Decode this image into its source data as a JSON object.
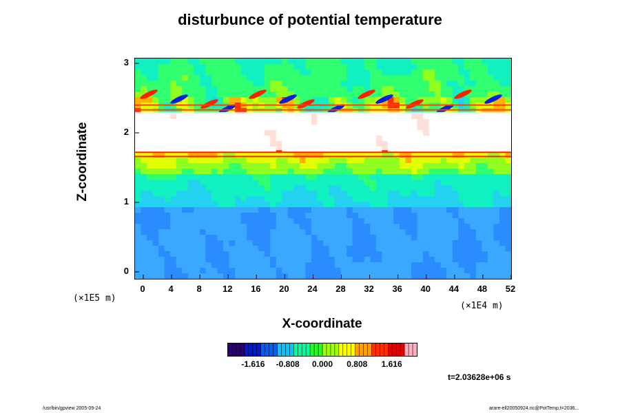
{
  "chart_data": {
    "type": "heatmap",
    "title": "disturbunce of potential temperature",
    "xlabel": "X-coordinate",
    "ylabel": "Z-coordinate",
    "x_unit_left": "(×1E5 m)",
    "x_unit_right": "(×1E4 m)",
    "xlim": [
      0,
      52
    ],
    "ylim": [
      0,
      3
    ],
    "x_ticks": [
      0,
      4,
      8,
      12,
      16,
      20,
      24,
      28,
      32,
      36,
      40,
      44,
      48,
      52
    ],
    "y_ticks": [
      0,
      1,
      2,
      3
    ],
    "x_tick_labels": [
      "0",
      "4",
      "8",
      "12",
      "16",
      "20",
      "24",
      "28",
      "32",
      "36",
      "40",
      "44",
      "48",
      "52"
    ],
    "y_tick_labels": [
      "0",
      "1",
      "2",
      "3"
    ],
    "colorbar": {
      "range": [
        -2.2,
        2.2
      ],
      "ticks": [
        -1.616,
        -0.808,
        0.0,
        0.808,
        1.616
      ],
      "tick_labels": [
        "-1.616",
        "-0.808",
        "0.000",
        "0.808",
        "1.616"
      ],
      "colormap": [
        "#2a0070",
        "#0018d0",
        "#0060ff",
        "#00c8ff",
        "#00ffa0",
        "#20ff20",
        "#a0ff00",
        "#ffff00",
        "#ffa000",
        "#ff3000",
        "#e00000",
        "#ffb0c0"
      ]
    },
    "time_label": "t=2.03628e+06 s"
  },
  "footer": {
    "left": "/usr/bin/gpview 2005-09-24",
    "right": "arare-ell20050924.nc@PotTemp,t=2036..."
  }
}
